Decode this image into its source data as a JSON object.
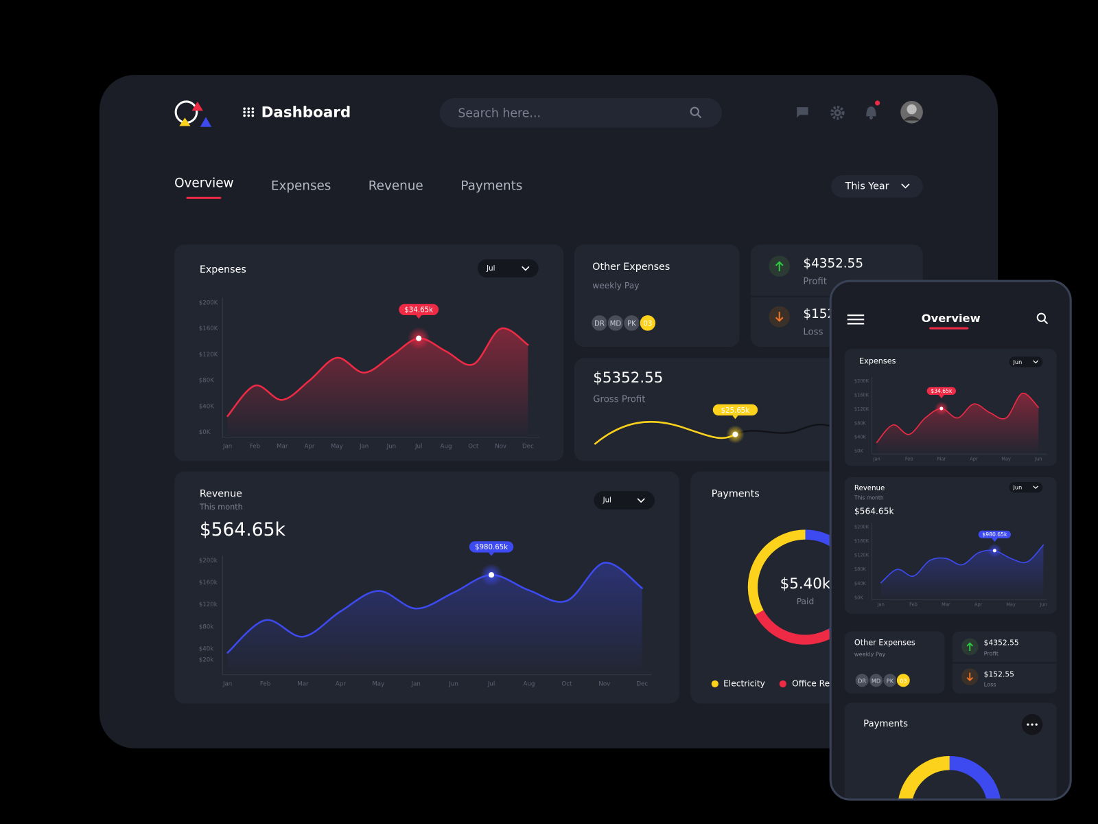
{
  "header": {
    "title": "Dashboard",
    "search_placeholder": "Search here..."
  },
  "tabs": [
    "Overview",
    "Expenses",
    "Revenue",
    "Payments"
  ],
  "period": "This Year",
  "expenses": {
    "title": "Expenses",
    "filter": "Jul",
    "highlight": "$34.65k",
    "color": "#ee2a45",
    "categories": [
      "Jan",
      "Feb",
      "Mar",
      "Apr",
      "May",
      "Jan",
      "Jun",
      "Jul",
      "Aug",
      "Oct",
      "Nov",
      "Dec"
    ],
    "values": [
      25,
      72,
      50,
      80,
      115,
      92,
      118,
      145,
      125,
      105,
      160,
      135
    ],
    "ylim": [
      0,
      200
    ],
    "yticks": [
      {
        "value": 0,
        "label": "$0K"
      },
      {
        "value": 40,
        "label": "$40K"
      },
      {
        "value": 80,
        "label": "$80K"
      },
      {
        "value": 120,
        "label": "$120K"
      },
      {
        "value": 160,
        "label": "$160K"
      },
      {
        "value": 200,
        "label": "$200K"
      }
    ]
  },
  "other_expenses": {
    "title": "Other Expenses",
    "subtitle": "weekly Pay",
    "avatars": [
      "DR",
      "MD",
      "PK",
      "03"
    ]
  },
  "profit": {
    "value": "$4352.55",
    "label": "Profit"
  },
  "loss": {
    "value": "$152.55",
    "label": "Loss"
  },
  "gross_profit": {
    "value": "$5352.55",
    "label": "Gross Profit",
    "highlight": "$25.65k"
  },
  "revenue": {
    "title": "Revenue",
    "subtitle": "This month",
    "total": "$564.65k",
    "filter": "Jul",
    "highlight": "$980.65k",
    "color": "#3d4af0",
    "categories": [
      "Jan",
      "Feb",
      "Mar",
      "Apr",
      "May",
      "Jan",
      "Jun",
      "Jul",
      "Aug",
      "Oct",
      "Nov",
      "Dec"
    ],
    "values": [
      33,
      92,
      62,
      108,
      145,
      113,
      142,
      174,
      146,
      127,
      196,
      150
    ],
    "ylim": [
      0,
      200
    ],
    "yticks": [
      {
        "value": 20,
        "label": "$20k"
      },
      {
        "value": 40,
        "label": "$40k"
      },
      {
        "value": 80,
        "label": "$80k"
      },
      {
        "value": 120,
        "label": "$120k"
      },
      {
        "value": 160,
        "label": "$160k"
      },
      {
        "value": 200,
        "label": "$200k"
      }
    ]
  },
  "payments": {
    "title": "Payments",
    "total": "$5.40k",
    "label": "Paid",
    "segments": [
      {
        "color": "#3d4af0",
        "value": 42
      },
      {
        "name": "Office Rent",
        "color": "#ee2a45",
        "value": 25
      },
      {
        "name": "Electricity",
        "color": "#fdd21c",
        "value": 33
      }
    ]
  },
  "mobile": {
    "title": "Overview",
    "expenses": {
      "filter": "Jun",
      "highlight": "$34.65k",
      "color": "#ee2a45",
      "categories": [
        "Jan",
        null,
        "Feb",
        null,
        "Mar",
        null,
        "Apr",
        null,
        "May",
        null,
        "Jun"
      ],
      "values": [
        25,
        75,
        48,
        95,
        122,
        95,
        135,
        110,
        95,
        165,
        125
      ],
      "ylim": [
        0,
        200
      ],
      "yticks": [
        {
          "value": 0,
          "label": "$0K"
        },
        {
          "value": 40,
          "label": "$40K"
        },
        {
          "value": 80,
          "label": "$80K"
        },
        {
          "value": 120,
          "label": "$120K"
        },
        {
          "value": 160,
          "label": "$160K"
        },
        {
          "value": 200,
          "label": "$200K"
        }
      ]
    },
    "revenue": {
      "filter": "Jun",
      "highlight": "$980.65k",
      "color": "#3d4af0",
      "categories": [
        "Jan",
        null,
        "Feb",
        null,
        "Mar",
        null,
        "Apr",
        null,
        "May",
        null,
        "Jun"
      ],
      "values": [
        42,
        80,
        61,
        105,
        111,
        93,
        127,
        133,
        111,
        101,
        149
      ],
      "ylim": [
        0,
        200
      ],
      "yticks": [
        {
          "value": 0,
          "label": "$0K"
        },
        {
          "value": 40,
          "label": "$40K"
        },
        {
          "value": 80,
          "label": "$80K"
        },
        {
          "value": 120,
          "label": "$120K"
        },
        {
          "value": 160,
          "label": "$160K"
        },
        {
          "value": 200,
          "label": "$200K"
        }
      ]
    }
  }
}
